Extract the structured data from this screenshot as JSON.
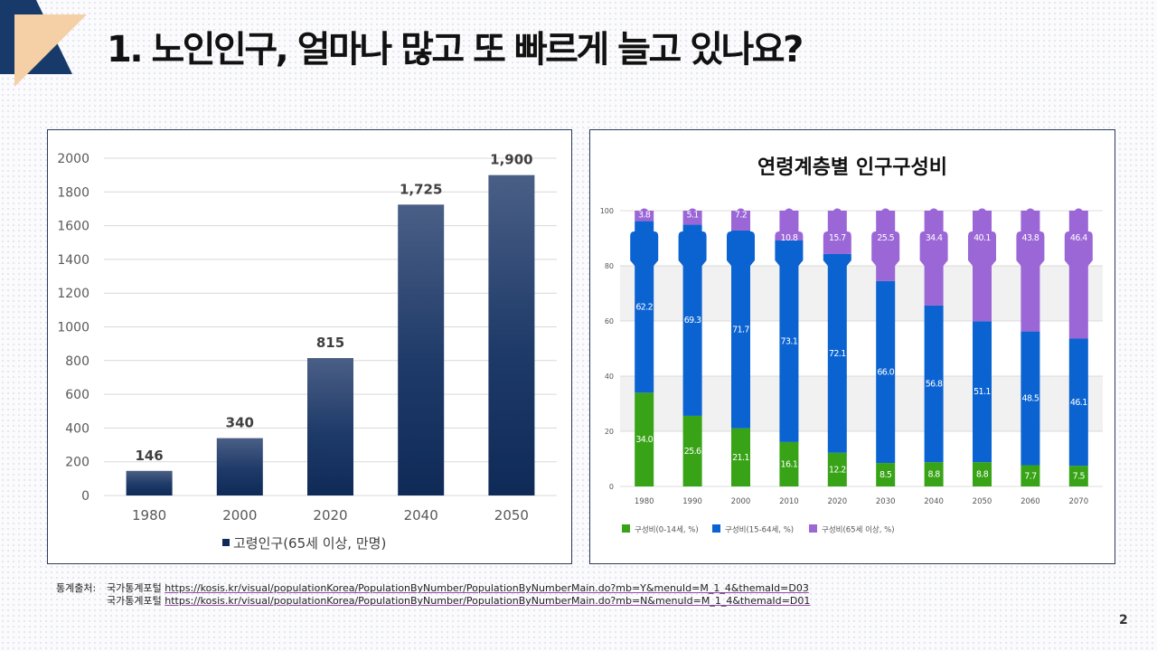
{
  "slide": {
    "title": "1. 노인인구, 얼마나 많고 또 빠르게 늘고 있나요?",
    "page_number": "2"
  },
  "colors": {
    "bar_dark": "#0f2a57",
    "bar_light": "#4a5f86",
    "green": "#38a317",
    "blue": "#0a63d1",
    "purple": "#9b66d6",
    "corner_navy": "#173a6a",
    "corner_peach": "#f5cfa5"
  },
  "chart_data": [
    {
      "type": "bar",
      "categories": [
        "1980",
        "2000",
        "2020",
        "2040",
        "2050"
      ],
      "values": [
        146,
        340,
        815,
        1725,
        1900
      ],
      "value_labels": [
        "146",
        "340",
        "815",
        "1,725",
        "1,900"
      ],
      "y_ticks": [
        "0",
        "200",
        "400",
        "600",
        "800",
        "1000",
        "1200",
        "1400",
        "1600",
        "1800",
        "2000"
      ],
      "ylim": [
        0,
        2000
      ],
      "grid": true,
      "legend": "bottom",
      "series_name": "고령인구(65세 이상, 만명)"
    },
    {
      "type": "bar",
      "stacked": true,
      "title": "연령계층별 인구구성비",
      "categories": [
        "1980",
        "1990",
        "2000",
        "2010",
        "2020",
        "2030",
        "2040",
        "2050",
        "2060",
        "2070"
      ],
      "ylim": [
        0,
        100
      ],
      "y_ticks": [
        "0",
        "20",
        "40",
        "60",
        "80",
        "100"
      ],
      "legend": "bottom-left",
      "series": [
        {
          "name": "구성비(0-14세, %)",
          "values": [
            34.0,
            25.6,
            21.1,
            16.1,
            12.2,
            8.5,
            8.8,
            8.8,
            7.7,
            7.5
          ],
          "labels": [
            "34.0",
            "25.6",
            "21.1",
            "16.1",
            "12.2",
            "8.5",
            "8.8",
            "8.8",
            "7.7",
            "7.5"
          ]
        },
        {
          "name": "구성비(15-64세, %)",
          "values": [
            62.2,
            69.3,
            71.7,
            73.1,
            72.1,
            66.0,
            56.8,
            51.1,
            48.5,
            46.1
          ],
          "labels": [
            "62.2",
            "69.3",
            "71.7",
            "73.1",
            "72.1",
            "66.0",
            "56.8",
            "51.1",
            "48.5",
            "46.1"
          ]
        },
        {
          "name": "구성비(65세 이상, %)",
          "values": [
            3.8,
            5.1,
            7.2,
            10.8,
            15.7,
            25.5,
            34.4,
            40.1,
            43.8,
            46.4
          ],
          "labels": [
            "3.8",
            "5.1",
            "7.2",
            "10.8",
            "15.7",
            "25.5",
            "34.4",
            "40.1",
            "43.8",
            "46.4"
          ]
        }
      ]
    }
  ],
  "source": {
    "label": "통계출처:",
    "lines": [
      {
        "site": "국가통계포털",
        "url": "https://kosis.kr/visual/populationKorea/PopulationByNumber/PopulationByNumberMain.do?mb=Y&menuId=M_1_4&themaId=D03"
      },
      {
        "site": "국가통계포털",
        "url": "https://kosis.kr/visual/populationKorea/PopulationByNumber/PopulationByNumberMain.do?mb=N&menuId=M_1_4&themaId=D01"
      }
    ]
  }
}
